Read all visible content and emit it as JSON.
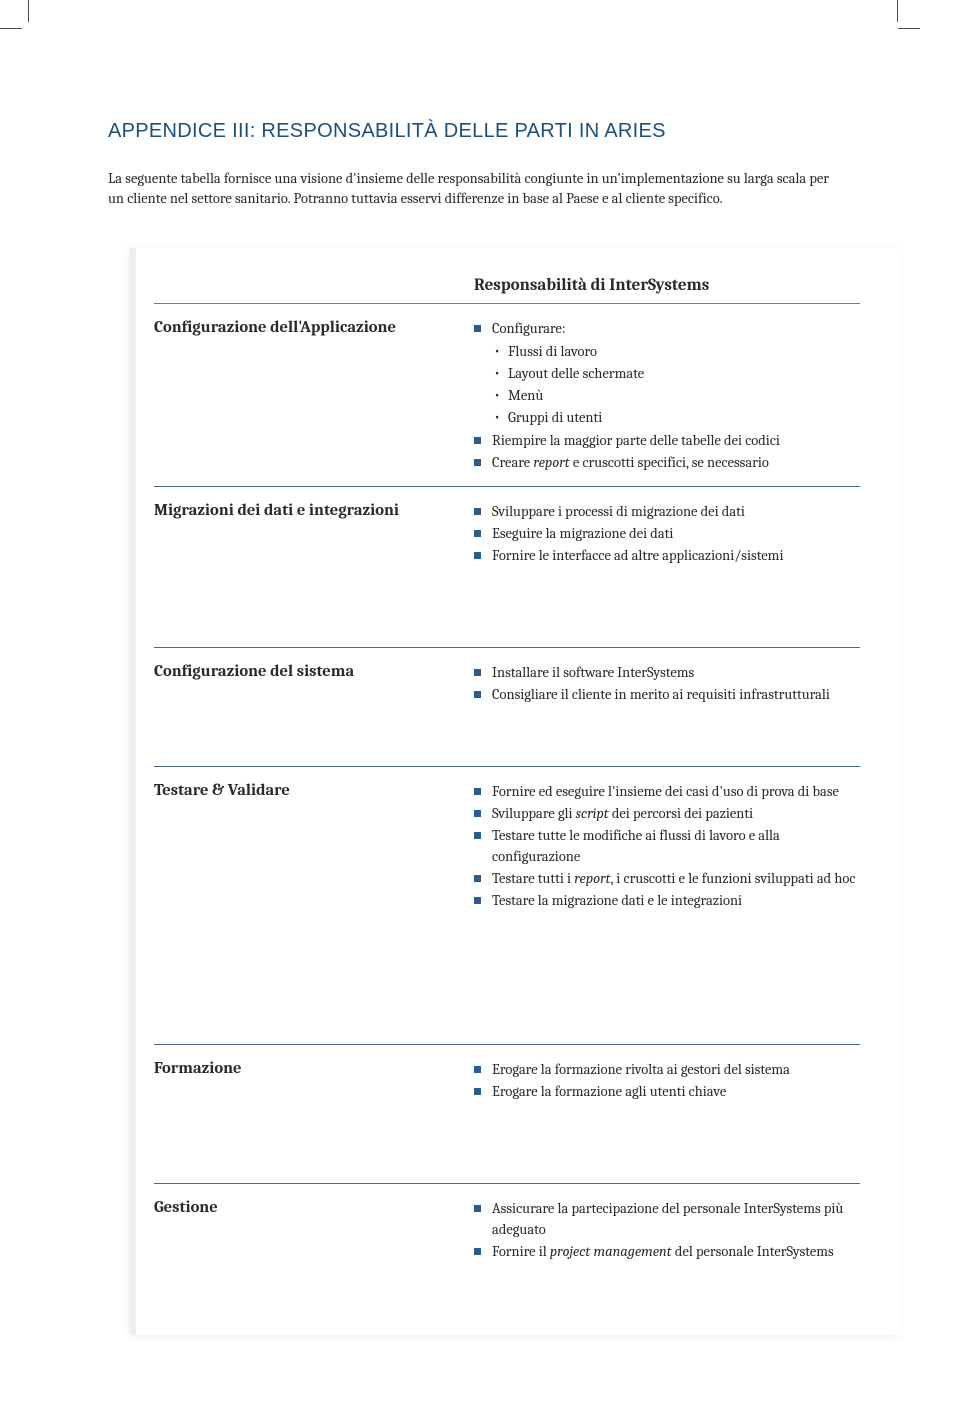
{
  "colors": {
    "title": "#1c4f7c",
    "text": "#2a2a2a",
    "rule_accent": "#d05b2e",
    "rule_section": "#4a6a8a",
    "bullet_square": "#2d5b8a",
    "card_edge": "#eeeeee",
    "background": "#ffffff"
  },
  "typography": {
    "title_fontsize": 20,
    "title_weight": 300,
    "body_fontsize": 14.5,
    "section_label_fontsize": 16.5,
    "header_fontsize": 17
  },
  "page": {
    "title": "APPENDICE III: RESPONSABILITÀ DELLE PARTI IN ARIES",
    "intro": "La seguente tabella fornisce una visione d'insieme delle responsabilità congiunte in un'implementazione su larga scala per un cliente nel settore sanitario. Potranno tuttavia esservi differenze in base al Paese e al cliente specifico."
  },
  "table": {
    "header": "Responsabilità di InterSystems",
    "sections": [
      {
        "label": "Configurazione dell'Applicazione",
        "items": [
          {
            "text": "Configurare:",
            "sub": [
              "Flussi di lavoro",
              "Layout delle schermate",
              "Menù",
              "Gruppi di utenti"
            ]
          },
          {
            "text": "Riempire la maggior parte delle tabelle dei codici"
          },
          {
            "html": "Creare <em>report</em> e cruscotti specifici, se necessario"
          }
        ],
        "gap_after": "none"
      },
      {
        "label": "Migrazioni dei dati e integrazioni",
        "items": [
          {
            "text": "Sviluppare i processi di migrazione dei dati"
          },
          {
            "text": "Eseguire la migrazione dei dati"
          },
          {
            "text": "Fornire le interfacce ad altre applicazioni/sistemi"
          }
        ],
        "gap_after": "m"
      },
      {
        "label": "Configurazione del sistema",
        "items": [
          {
            "text": "Installare il software InterSystems"
          },
          {
            "text": "Consigliare il cliente in merito ai requisiti infrastrutturali"
          }
        ],
        "gap_after": "s"
      },
      {
        "label": "Testare & Validare",
        "items": [
          {
            "text": "Fornire ed eseguire l'insieme dei casi d'uso di prova di base"
          },
          {
            "html": "Sviluppare gli <em>script</em> dei percorsi dei pazienti"
          },
          {
            "text": "Testare tutte le modifiche ai flussi di lavoro e alla configurazione"
          },
          {
            "html": "Testare tutti i <em>report</em>, i cruscotti e le funzioni sviluppati ad hoc"
          },
          {
            "text": "Testare la migrazione dati e le integrazioni"
          }
        ],
        "gap_after": "l"
      },
      {
        "label": "Formazione",
        "items": [
          {
            "text": "Erogare la formazione rivolta ai gestori del sistema"
          },
          {
            "text": "Erogare la formazione agli utenti chiave"
          }
        ],
        "gap_after": "m"
      },
      {
        "label": "Gestione",
        "items": [
          {
            "text": "Assicurare la partecipazione del personale InterSystems più adeguato"
          },
          {
            "html": "Fornire il <em>project management</em> del personale InterSystems"
          }
        ],
        "gap_after": "none",
        "no_border": true
      }
    ]
  }
}
